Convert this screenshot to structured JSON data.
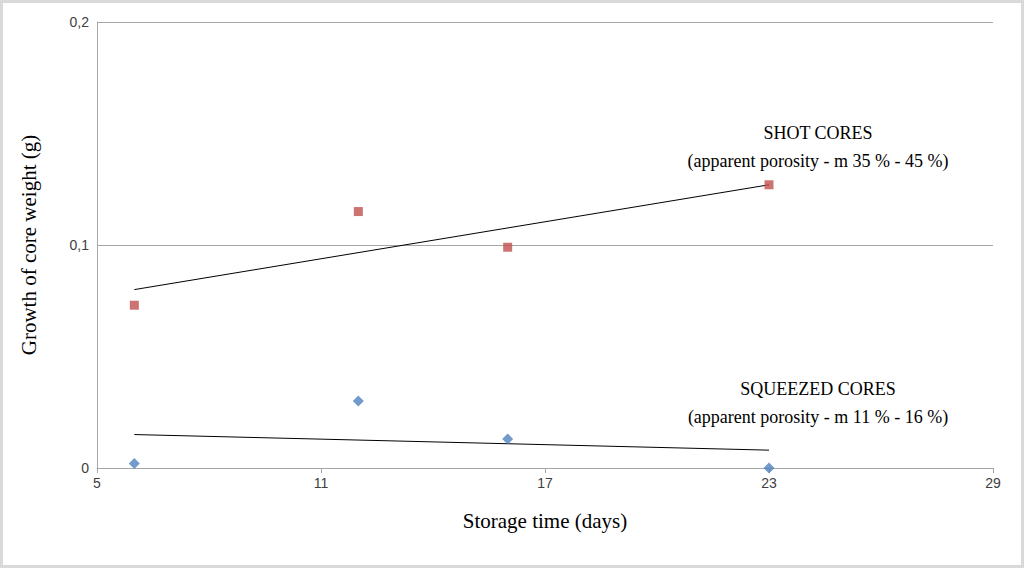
{
  "chart_data": {
    "type": "scatter",
    "x_label": "Storage time (days)",
    "y_label": "Growth of core weight (g)",
    "xlim": [
      5,
      29
    ],
    "xticks": [
      5,
      11,
      17,
      23,
      29
    ],
    "ylim": [
      0,
      0.2
    ],
    "yticks": [
      0,
      {
        "value": 0.1,
        "label": "0,1"
      },
      {
        "value": 0.2,
        "label": "0,2"
      }
    ],
    "grid": true,
    "series": [
      {
        "name": "SHOT CORES",
        "annotation": "(apparent porosity - m 35 % - 45 %)",
        "color": "#c0504d",
        "marker": "square",
        "x": [
          6,
          12,
          16,
          23
        ],
        "values": [
          0.073,
          0.115,
          0.099,
          0.127
        ],
        "trend": {
          "x": [
            6,
            23
          ],
          "values": [
            0.08,
            0.127
          ]
        }
      },
      {
        "name": "SQUEEZED CORES",
        "annotation": "(apparent porosity - m 11 % - 16 %)",
        "color": "#4f81bd",
        "marker": "diamond",
        "x": [
          6,
          12,
          16,
          23
        ],
        "values": [
          0.002,
          0.03,
          0.013,
          0.0
        ],
        "trend": {
          "x": [
            6,
            23
          ],
          "values": [
            0.015,
            0.008
          ]
        }
      }
    ]
  }
}
